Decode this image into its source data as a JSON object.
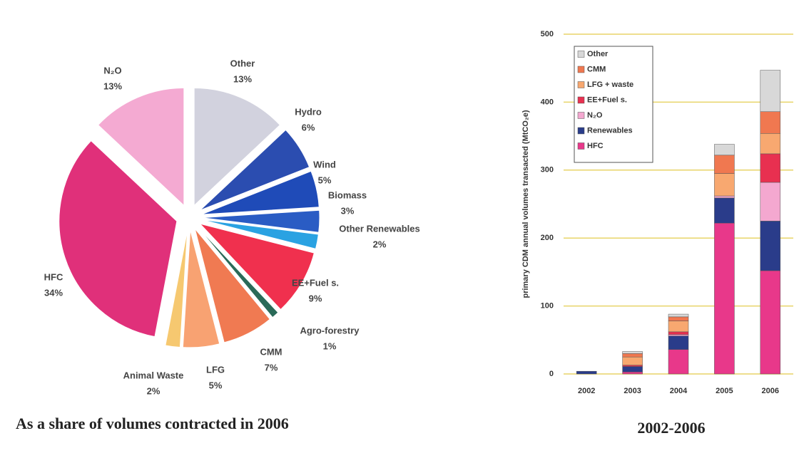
{
  "chart_data": [
    {
      "type": "pie",
      "title": "As a share of volumes contracted in 2006",
      "categories": [
        "Other",
        "Hydro",
        "Wind",
        "Biomass",
        "Other Renewables",
        "EE+Fuel s.",
        "Agro-forestry",
        "CMM",
        "LFG",
        "Animal Waste",
        "HFC",
        "N₂O"
      ],
      "values": [
        13,
        6,
        5,
        3,
        2,
        9,
        1,
        7,
        5,
        2,
        34,
        13
      ],
      "value_labels": [
        "13%",
        "6%",
        "5%",
        "3%",
        "2%",
        "9%",
        "1%",
        "7%",
        "5%",
        "2%",
        "34%",
        "13%"
      ],
      "colors": [
        "#d2d2de",
        "#2b4db0",
        "#1f4bb8",
        "#2a5cc4",
        "#2aa2e2",
        "#f0304e",
        "#2a6a58",
        "#f07a52",
        "#f8a272",
        "#f6c870",
        "#e0307a",
        "#f4aad2"
      ]
    },
    {
      "type": "stacked_bar",
      "title": "2002-2006",
      "y_label": "primary CDM annual volumes transacted (MtCO₂e)",
      "categories": [
        "2002",
        "2003",
        "2004",
        "2005",
        "2006"
      ],
      "series": [
        {
          "name": "HFC",
          "color": "#e8388a",
          "values": [
            0,
            3,
            36,
            222,
            152
          ]
        },
        {
          "name": "Renewables",
          "color": "#2a3c8a",
          "values": [
            4,
            8,
            20,
            37,
            73
          ]
        },
        {
          "name": "N₂O",
          "color": "#f4a8d0",
          "values": [
            0,
            0,
            2,
            3,
            57
          ]
        },
        {
          "name": "EE+Fuel s.",
          "color": "#e83050",
          "values": [
            0,
            2,
            4,
            0,
            42
          ]
        },
        {
          "name": "LFG + waste",
          "color": "#f8a870",
          "values": [
            0,
            12,
            16,
            33,
            30
          ]
        },
        {
          "name": "CMM",
          "color": "#f07850",
          "values": [
            0,
            5,
            6,
            27,
            32
          ]
        },
        {
          "name": "Other",
          "color": "#d8d8d8",
          "values": [
            0,
            3,
            4,
            16,
            61
          ]
        }
      ],
      "ylim": [
        0,
        500
      ],
      "yticks": [
        0,
        100,
        200,
        300,
        400,
        500
      ],
      "grid": true
    }
  ]
}
